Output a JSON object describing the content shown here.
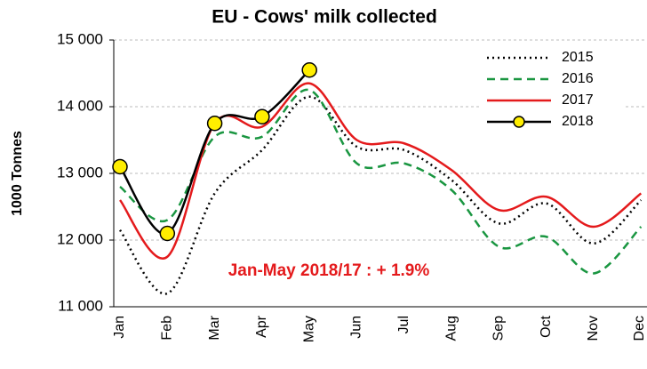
{
  "chart_data": {
    "type": "line",
    "title": "EU - Cows' milk collected",
    "y_label": "1000 Tonnes",
    "annotation": "Jan-May 2018/17  : + 1.9%",
    "categories": [
      "Jan",
      "Feb",
      "Mar",
      "Apr",
      "May",
      "Jun",
      "Jul",
      "Aug",
      "Sep",
      "Oct",
      "Nov",
      "Dec"
    ],
    "series": [
      {
        "name": "2015",
        "color": "#000000",
        "style": "dotted",
        "values": [
          12150,
          11200,
          12700,
          13350,
          14150,
          13400,
          13350,
          12900,
          12250,
          12550,
          11950,
          12600
        ]
      },
      {
        "name": "2016",
        "color": "#1a9641",
        "style": "dashed",
        "values": [
          12800,
          12300,
          13550,
          13550,
          14250,
          13150,
          13150,
          12750,
          11900,
          12050,
          11500,
          12200
        ]
      },
      {
        "name": "2017",
        "color": "#e41a1c",
        "style": "solid",
        "values": [
          12600,
          11750,
          13750,
          13700,
          14350,
          13500,
          13450,
          13050,
          12450,
          12650,
          12200,
          12700
        ]
      },
      {
        "name": "2018",
        "color": "#000000",
        "style": "marker",
        "marker_color": "#ffee00",
        "values": [
          13100,
          12100,
          13750,
          13850,
          14550,
          null,
          null,
          null,
          null,
          null,
          null,
          null
        ]
      }
    ],
    "ylim": [
      11000,
      15000
    ],
    "yticks": [
      {
        "value": 11000,
        "label": "11 000"
      },
      {
        "value": 12000,
        "label": "12 000"
      },
      {
        "value": 13000,
        "label": "13 000"
      },
      {
        "value": 14000,
        "label": "14 000"
      },
      {
        "value": 15000,
        "label": "15 000"
      }
    ],
    "grid": true,
    "legend": "top-right"
  }
}
